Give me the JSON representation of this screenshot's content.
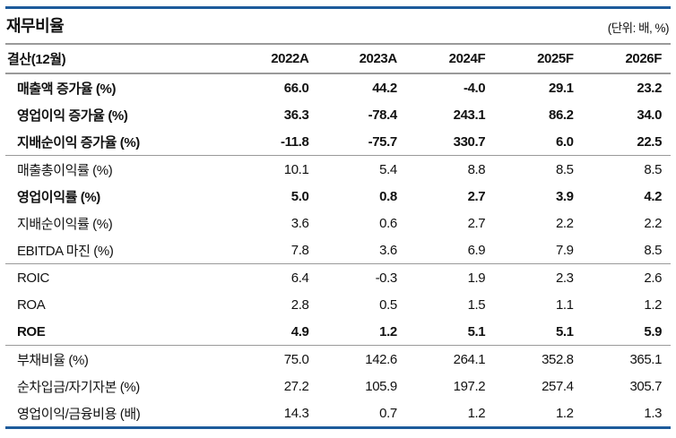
{
  "title": "재무비율",
  "unit_note": "(단위: 배, %)",
  "colors": {
    "accent_navy": "#1d5b9b",
    "divider_gray": "#9a9a9a",
    "text": "#111111"
  },
  "table": {
    "header": {
      "label": "결산(12월)",
      "columns": [
        "2022A",
        "2023A",
        "2024F",
        "2025F",
        "2026F"
      ]
    },
    "sections": [
      {
        "rows": [
          {
            "label": "매출액 증가율 (%)",
            "bold": true,
            "values": [
              "66.0",
              "44.2",
              "-4.0",
              "29.1",
              "23.2"
            ]
          },
          {
            "label": "영업이익 증가율 (%)",
            "bold": true,
            "values": [
              "36.3",
              "-78.4",
              "243.1",
              "86.2",
              "34.0"
            ]
          },
          {
            "label": "지배순이익 증가율 (%)",
            "bold": true,
            "values": [
              "-11.8",
              "-75.7",
              "330.7",
              "6.0",
              "22.5"
            ]
          }
        ]
      },
      {
        "rows": [
          {
            "label": "매출총이익률 (%)",
            "bold": false,
            "values": [
              "10.1",
              "5.4",
              "8.8",
              "8.5",
              "8.5"
            ]
          },
          {
            "label": "영업이익률 (%)",
            "bold": true,
            "values": [
              "5.0",
              "0.8",
              "2.7",
              "3.9",
              "4.2"
            ]
          },
          {
            "label": "지배순이익률 (%)",
            "bold": false,
            "values": [
              "3.6",
              "0.6",
              "2.7",
              "2.2",
              "2.2"
            ]
          },
          {
            "label": "EBITDA 마진 (%)",
            "bold": false,
            "values": [
              "7.8",
              "3.6",
              "6.9",
              "7.9",
              "8.5"
            ]
          }
        ]
      },
      {
        "rows": [
          {
            "label": "ROIC",
            "bold": false,
            "values": [
              "6.4",
              "-0.3",
              "1.9",
              "2.3",
              "2.6"
            ]
          },
          {
            "label": "ROA",
            "bold": false,
            "values": [
              "2.8",
              "0.5",
              "1.5",
              "1.1",
              "1.2"
            ]
          },
          {
            "label": "ROE",
            "bold": true,
            "values": [
              "4.9",
              "1.2",
              "5.1",
              "5.1",
              "5.9"
            ]
          }
        ]
      },
      {
        "rows": [
          {
            "label": "부채비율 (%)",
            "bold": false,
            "values": [
              "75.0",
              "142.6",
              "264.1",
              "352.8",
              "365.1"
            ]
          },
          {
            "label": "순차입금/자기자본 (%)",
            "bold": false,
            "values": [
              "27.2",
              "105.9",
              "197.2",
              "257.4",
              "305.7"
            ]
          },
          {
            "label": "영업이익/금융비용 (배)",
            "bold": false,
            "values": [
              "14.3",
              "0.7",
              "1.2",
              "1.2",
              "1.3"
            ]
          }
        ]
      }
    ]
  }
}
